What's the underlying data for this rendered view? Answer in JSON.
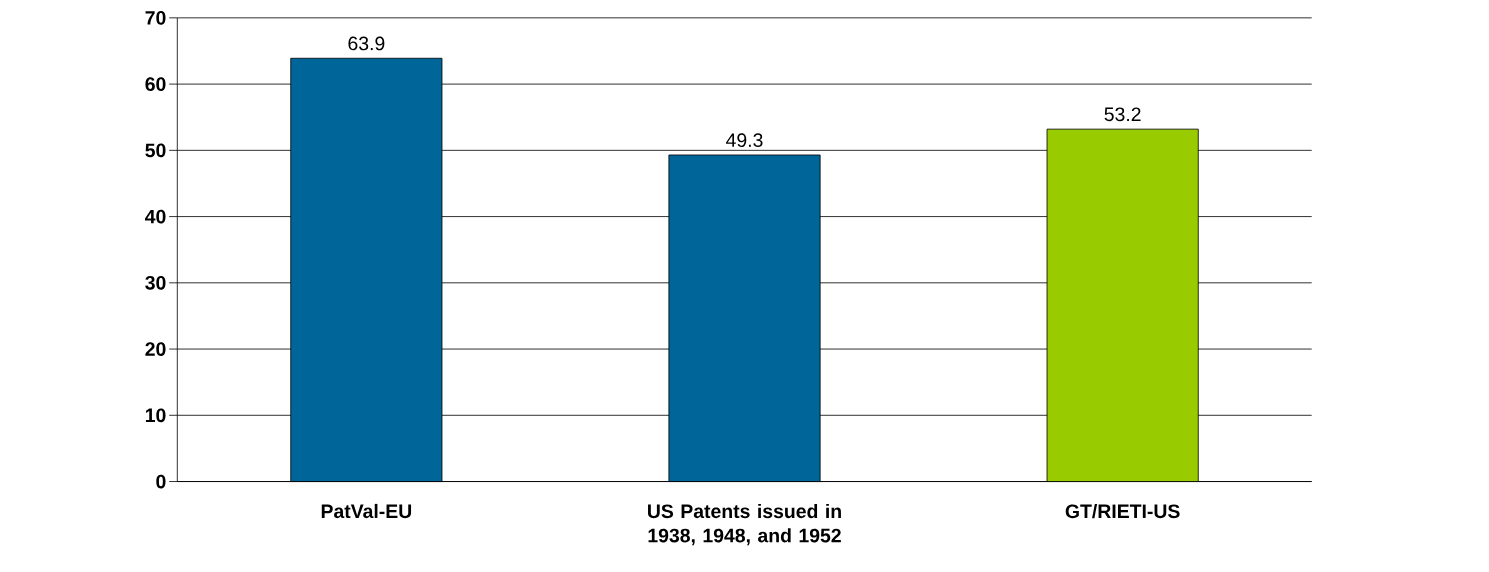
{
  "chart_data": {
    "type": "bar",
    "categories": [
      "PatVal-EU",
      "US Patents issued in 1938, 1948, and 1952",
      "GT/RIETI-US"
    ],
    "values": [
      63.9,
      49.3,
      53.2
    ],
    "colors": [
      "#006699",
      "#006699",
      "#99cc00"
    ],
    "ylim": [
      0,
      70
    ],
    "yticks": [
      0,
      10,
      20,
      30,
      40,
      50,
      60,
      70
    ],
    "grid": "y",
    "data_labels": true
  }
}
